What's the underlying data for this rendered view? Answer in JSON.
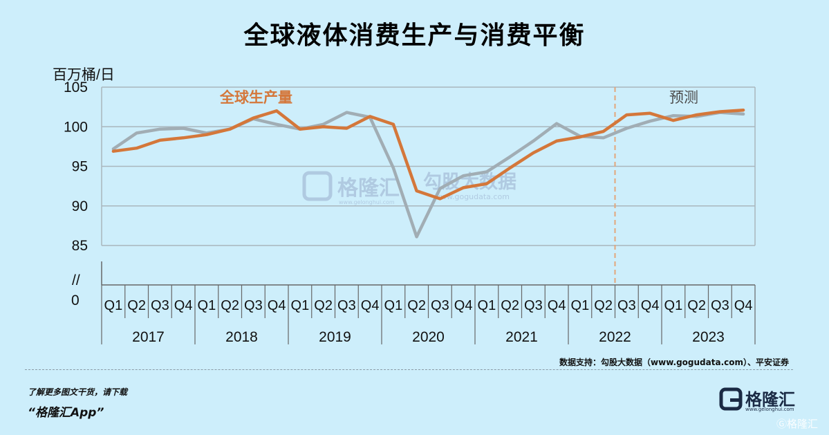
{
  "title": "全球液体消费生产与消费平衡",
  "unit_label": "百万桶/日",
  "axis_break": "//",
  "y_zero_label": "0",
  "forecast_label": "预测",
  "series_label_production": "全球生产量",
  "watermark": {
    "brand": "格隆汇",
    "brand_url": "www.gelonghui.com",
    "gogu": "勾股大数据",
    "gogu_url": "www.gogudata.com"
  },
  "source": "数据支持：勾股大数据（www.gogudata.com）、平安证券",
  "promo_line1": "了解更多图文干货，请下载",
  "promo_line2": "“格隆汇App”",
  "brand_logo": {
    "name": "格隆汇",
    "url": "www.gelonghui.com"
  },
  "bottom_watermark": "格隆汇",
  "colors": {
    "production": "#d4773a",
    "consumption": "#a1adb4",
    "forecast_line": "#e3a57a",
    "grid": "#a9b6bd",
    "background": "#cdeefb"
  },
  "chart_data": {
    "type": "line",
    "title": "全球液体消费生产与消费平衡",
    "ylabel": "百万桶/日",
    "ylim": [
      85,
      105
    ],
    "yticks": [
      85,
      90,
      95,
      100,
      105
    ],
    "x_quarters": [
      "Q1",
      "Q2",
      "Q3",
      "Q4",
      "Q1",
      "Q2",
      "Q3",
      "Q4",
      "Q1",
      "Q2",
      "Q3",
      "Q4",
      "Q1",
      "Q2",
      "Q3",
      "Q4",
      "Q1",
      "Q2",
      "Q3",
      "Q4",
      "Q1",
      "Q2",
      "Q3",
      "Q4",
      "Q1",
      "Q2",
      "Q3",
      "Q4"
    ],
    "years": [
      "2017",
      "2018",
      "2019",
      "2020",
      "2021",
      "2022",
      "2023"
    ],
    "forecast_start_after_index": 21,
    "series": [
      {
        "name": "全球生产量",
        "color": "#d4773a",
        "values": [
          96.9,
          97.3,
          98.3,
          98.6,
          99.0,
          99.7,
          101.1,
          102.0,
          99.7,
          100.0,
          99.8,
          101.3,
          100.3,
          91.9,
          90.9,
          92.3,
          92.8,
          94.8,
          96.7,
          98.2,
          98.7,
          99.4,
          101.5,
          101.7,
          100.8,
          101.5,
          101.9,
          102.1
        ]
      },
      {
        "name": "",
        "color": "#a1adb4",
        "values": [
          97.2,
          99.2,
          99.7,
          99.8,
          99.2,
          99.7,
          101.0,
          100.3,
          99.7,
          100.3,
          101.8,
          101.2,
          94.8,
          86.1,
          92.2,
          93.8,
          94.3,
          96.2,
          98.2,
          100.4,
          98.8,
          98.6,
          99.8,
          100.7,
          101.4,
          101.3,
          101.8,
          101.6
        ]
      }
    ]
  }
}
